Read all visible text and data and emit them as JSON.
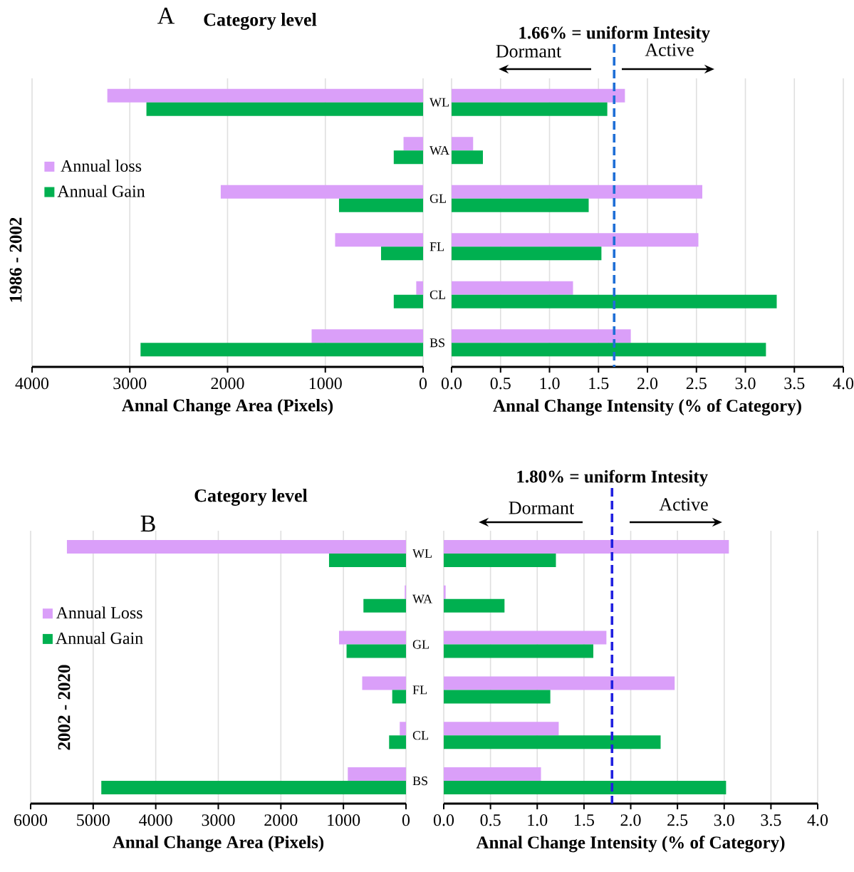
{
  "chart_data": [
    {
      "type": "bar",
      "orientation": "horizontal",
      "title": "Category level",
      "ylabel": "1986 - 2002",
      "xlabel": "Annal Change Area (Pixels)",
      "categories": [
        "WL",
        "WA",
        "GL",
        "FL",
        "CL",
        "BS"
      ],
      "series": [
        {
          "name": "Annual loss",
          "color": "#da9ff9",
          "values": [
            3230,
            200,
            2070,
            900,
            70,
            1140
          ]
        },
        {
          "name": "Annual Gain",
          "color": "#00b050",
          "values": [
            2830,
            300,
            860,
            430,
            300,
            2890
          ]
        }
      ],
      "xlim": [
        4000,
        0
      ],
      "xticks": [
        0,
        1000,
        2000,
        3000,
        4000
      ],
      "grid": "x",
      "legend": "left",
      "annotations": [
        "A"
      ]
    },
    {
      "type": "bar",
      "orientation": "horizontal",
      "xlabel": "Annal Change Intensity (% of Category)",
      "categories": [
        null,
        null,
        null,
        null,
        null,
        null
      ],
      "series": [
        {
          "color": "#da9ff9",
          "values": [
            1.77,
            0.22,
            2.56,
            2.52,
            1.24,
            1.83
          ]
        },
        {
          "color": "#00b050",
          "values": [
            1.59,
            0.32,
            1.4,
            1.53,
            3.32,
            3.21
          ]
        }
      ],
      "xlim": [
        0,
        4
      ],
      "xticks": [
        {
          "value": 0,
          "label": "0.0"
        },
        {
          "value": 0.5,
          "label": "0.5"
        },
        {
          "value": 1,
          "label": "1.0"
        },
        {
          "value": 1.5,
          "label": "1.5"
        },
        {
          "value": 2,
          "label": "2.0"
        },
        {
          "value": 2.5,
          "label": "2.5"
        },
        {
          "value": 3,
          "label": "3.0"
        },
        {
          "value": 3.5,
          "label": "3.5"
        },
        {
          "value": 4,
          "label": "4.0"
        }
      ],
      "grid": "x",
      "tick_labels": "x",
      "ref_lines": [
        {
          "axis": "x",
          "value": 1.66,
          "label": "1.66% = uniform Intesity",
          "color": "#1f6fd6",
          "line_style": "dashed"
        }
      ],
      "annotations": [
        "Dormant",
        "Active"
      ]
    },
    {
      "type": "bar",
      "orientation": "horizontal",
      "title": "Category level",
      "ylabel": "2002 - 2020",
      "xlabel": "Annal Change Area (Pixels)",
      "categories": [
        "WL",
        "WA",
        "GL",
        "FL",
        "CL",
        "BS"
      ],
      "series": [
        {
          "name": "Annual Loss",
          "color": "#da9ff9",
          "values": [
            5420,
            20,
            1070,
            700,
            100,
            930
          ]
        },
        {
          "name": "Annual Gain",
          "color": "#00b050",
          "values": [
            1230,
            680,
            950,
            220,
            270,
            4870
          ]
        }
      ],
      "xlim": [
        6000,
        0
      ],
      "xticks": [
        0,
        1000,
        2000,
        3000,
        4000,
        5000,
        6000
      ],
      "grid": "x",
      "legend": "left",
      "annotations": [
        "B"
      ]
    },
    {
      "type": "bar",
      "orientation": "horizontal",
      "xlabel": "Annal Change Intensity (% of Category)",
      "categories": [
        null,
        null,
        null,
        null,
        null,
        null
      ],
      "series": [
        {
          "color": "#da9ff9",
          "values": [
            3.05,
            0.02,
            1.74,
            2.47,
            1.23,
            1.04
          ]
        },
        {
          "color": "#00b050",
          "values": [
            1.2,
            0.65,
            1.6,
            1.14,
            2.32,
            3.02
          ]
        }
      ],
      "xlim": [
        0,
        4
      ],
      "xticks": [
        {
          "value": 0,
          "label": "0.0"
        },
        {
          "value": 0.5,
          "label": "0.5"
        },
        {
          "value": 1,
          "label": "1.0"
        },
        {
          "value": 1.5,
          "label": "1.5"
        },
        {
          "value": 2,
          "label": "2.0"
        },
        {
          "value": 2.5,
          "label": "2.5"
        },
        {
          "value": 3,
          "label": "3.0"
        },
        {
          "value": 3.5,
          "label": "3.5"
        },
        {
          "value": 4,
          "label": "4.0"
        }
      ],
      "grid": "x",
      "tick_labels": "x",
      "ref_lines": [
        {
          "axis": "x",
          "value": 1.8,
          "label": "1.80% = uniform Intesity",
          "color": "#2020e0",
          "line_style": "dashed"
        }
      ],
      "annotations": [
        "Dormant",
        "Active"
      ]
    }
  ]
}
